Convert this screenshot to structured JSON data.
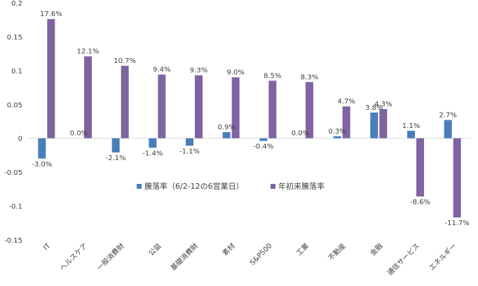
{
  "chart_data": {
    "type": "bar",
    "categories": [
      "IT",
      "ヘルスケア",
      "一般消費財",
      "公益",
      "基礎消費財",
      "素材",
      "S&P500",
      "工業",
      "不動産",
      "金融",
      "通信サービス",
      "エネルギー"
    ],
    "series": [
      {
        "name": "騰落率（6/2-12の6営業日）",
        "color": "#4a7ebb",
        "values": [
          -0.03,
          0.0,
          -0.021,
          -0.014,
          -0.011,
          0.009,
          -0.004,
          0.0,
          0.003,
          0.038,
          0.011,
          0.027
        ],
        "labels": [
          "-3.0%",
          "0.0%",
          "-2.1%",
          "-1.4%",
          "-1.1%",
          "0.9%",
          "-0.4%",
          "0.0%",
          "0.3%",
          "3.8%",
          "1.1%",
          "2.7%"
        ]
      },
      {
        "name": "年初来騰落率",
        "color": "#8064a2",
        "values": [
          0.176,
          0.121,
          0.107,
          0.094,
          0.093,
          0.09,
          0.085,
          0.083,
          0.047,
          0.043,
          -0.086,
          -0.117
        ],
        "labels": [
          "17.6%",
          "12.1%",
          "10.7%",
          "9.4%",
          "9.3%",
          "9.0%",
          "8.5%",
          "8.3%",
          "4.7%",
          "4.3%",
          "-8.6%",
          "-11.7%"
        ]
      }
    ],
    "yticks": [
      "0.2",
      "0.15",
      "0.1",
      "0.05",
      "0",
      "-0.05",
      "-0.1",
      "-0.15"
    ],
    "ylim": [
      -0.15,
      0.2
    ],
    "legend_position": "lower-center-inside",
    "grid": false
  }
}
